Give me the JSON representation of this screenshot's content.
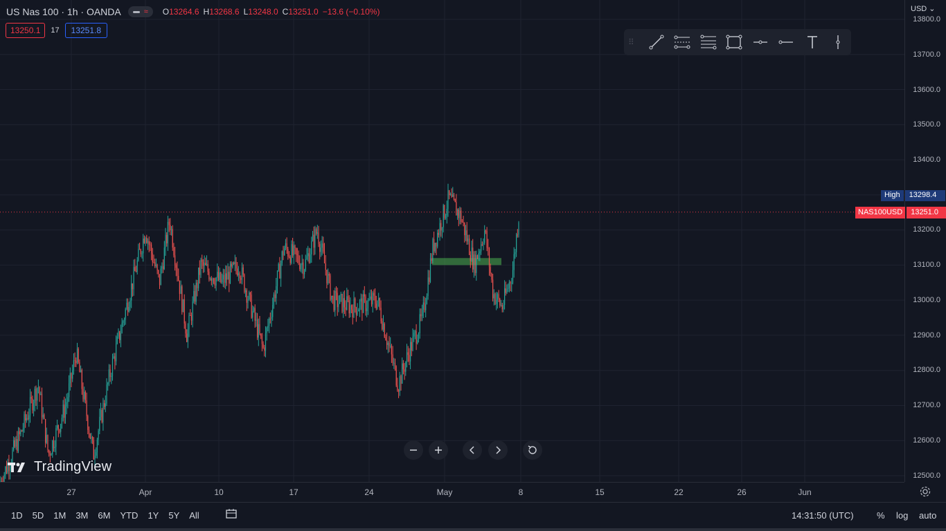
{
  "header": {
    "symbol": "US Nas 100 · 1h · OANDA",
    "ohlc": [
      {
        "key": "O",
        "value": "13264.6"
      },
      {
        "key": "H",
        "value": "13268.6"
      },
      {
        "key": "L",
        "value": "13248.0"
      },
      {
        "key": "C",
        "value": "13251.0"
      }
    ],
    "change": "−13.6 (−0.10%)",
    "bid": "13250.1",
    "spread": "17",
    "ask": "13251.8"
  },
  "price_scale": {
    "currency": "USD",
    "labels": [
      "13800.0",
      "13700.0",
      "13600.0",
      "13500.0",
      "13400.0",
      "13200.0",
      "13100.0",
      "13000.0",
      "12900.0",
      "12800.0",
      "12700.0",
      "12600.0",
      "12500.0"
    ],
    "high_label": "High",
    "high_value": "13298.4",
    "last_symbol": "NAS100USD",
    "last_value": "13251.0"
  },
  "time_axis": {
    "labels": [
      "27",
      "Apr",
      "10",
      "17",
      "24",
      "May",
      "8",
      "15",
      "22",
      "26",
      "Jun"
    ]
  },
  "toolbar": {
    "tools": [
      "trend-line-icon",
      "parallel-channel-icon",
      "fib-retracement-icon",
      "rectangle-icon",
      "horizontal-ray-icon",
      "horizontal-line-icon",
      "text-icon",
      "vertical-line-icon"
    ]
  },
  "bottom_bar": {
    "ranges": [
      "1D",
      "5D",
      "1M",
      "3M",
      "6M",
      "YTD",
      "1Y",
      "5Y",
      "All"
    ],
    "clock": "14:31:50 (UTC)",
    "percent": "%",
    "log": "log",
    "auto": "auto"
  },
  "logo": {
    "text": "TradingView"
  },
  "colors": {
    "up": "#26a69a",
    "down": "#ef5350",
    "background": "#131722",
    "grid": "#1f2330",
    "accent": "#2962ff"
  },
  "chart_data": {
    "type": "candlestick",
    "symbol": "NAS100USD",
    "interval": "1h",
    "ylim": [
      12480,
      13820
    ],
    "x_ticks": [
      "27",
      "Apr",
      "10",
      "17",
      "24",
      "May",
      "8",
      "15",
      "22",
      "26",
      "Jun"
    ],
    "series_path": [
      [
        0,
        12480
      ],
      [
        30,
        12620
      ],
      [
        55,
        12760
      ],
      [
        70,
        12560
      ],
      [
        95,
        12700
      ],
      [
        110,
        12850
      ],
      [
        135,
        12560
      ],
      [
        160,
        12800
      ],
      [
        185,
        13000
      ],
      [
        210,
        13200
      ],
      [
        230,
        13050
      ],
      [
        245,
        13230
      ],
      [
        270,
        12900
      ],
      [
        290,
        13100
      ],
      [
        320,
        13050
      ],
      [
        345,
        13100
      ],
      [
        380,
        12860
      ],
      [
        410,
        13150
      ],
      [
        440,
        13100
      ],
      [
        458,
        13200
      ],
      [
        480,
        13000
      ],
      [
        510,
        12980
      ],
      [
        545,
        13000
      ],
      [
        575,
        12760
      ],
      [
        590,
        12850
      ],
      [
        610,
        12950
      ],
      [
        625,
        13150
      ],
      [
        648,
        13290
      ],
      [
        665,
        13240
      ],
      [
        685,
        13100
      ],
      [
        700,
        13200
      ],
      [
        712,
        13020
      ],
      [
        725,
        12980
      ],
      [
        740,
        13080
      ],
      [
        750,
        13260
      ]
    ],
    "annotation_zone": {
      "price_from": 13100,
      "price_to": 13120
    }
  }
}
